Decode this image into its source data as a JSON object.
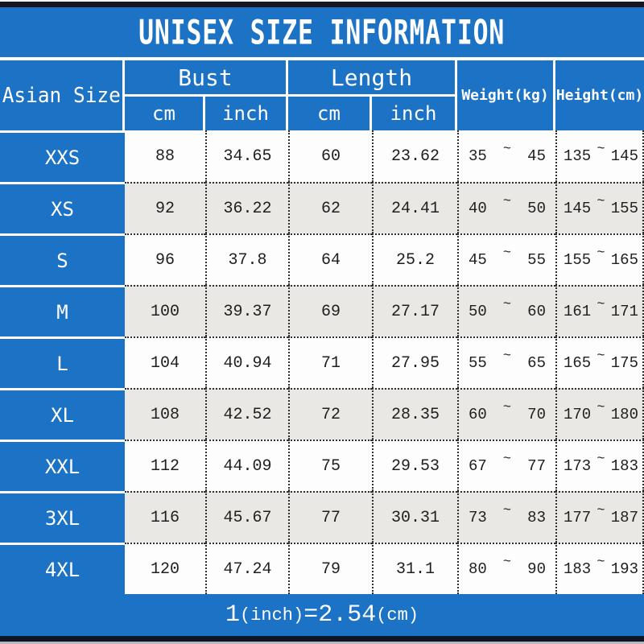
{
  "title": {
    "text": "UNISEX SIZE INFORMATION"
  },
  "header": {
    "size_column": "Asian Size",
    "groups": [
      {
        "label": "Bust",
        "subs": [
          "cm",
          "inch"
        ]
      },
      {
        "label": "Length",
        "subs": [
          "cm",
          "inch"
        ]
      }
    ],
    "weight": "Weight(kg)",
    "height": "Height(cm)"
  },
  "tilde": "~",
  "rows": [
    {
      "size": "XXS",
      "bust_cm": "88",
      "bust_inch": "34.65",
      "len_cm": "60",
      "len_inch": "23.62",
      "weight_min": "35",
      "weight_max": "45",
      "height_min": "135",
      "height_max": "145"
    },
    {
      "size": "XS",
      "bust_cm": "92",
      "bust_inch": "36.22",
      "len_cm": "62",
      "len_inch": "24.41",
      "weight_min": "40",
      "weight_max": "50",
      "height_min": "145",
      "height_max": "155"
    },
    {
      "size": "S",
      "bust_cm": "96",
      "bust_inch": "37.8",
      "len_cm": "64",
      "len_inch": "25.2",
      "weight_min": "45",
      "weight_max": "55",
      "height_min": "155",
      "height_max": "165"
    },
    {
      "size": "M",
      "bust_cm": "100",
      "bust_inch": "39.37",
      "len_cm": "69",
      "len_inch": "27.17",
      "weight_min": "50",
      "weight_max": "60",
      "height_min": "161",
      "height_max": "171"
    },
    {
      "size": "L",
      "bust_cm": "104",
      "bust_inch": "40.94",
      "len_cm": "71",
      "len_inch": "27.95",
      "weight_min": "55",
      "weight_max": "65",
      "height_min": "165",
      "height_max": "175"
    },
    {
      "size": "XL",
      "bust_cm": "108",
      "bust_inch": "42.52",
      "len_cm": "72",
      "len_inch": "28.35",
      "weight_min": "60",
      "weight_max": "70",
      "height_min": "170",
      "height_max": "180"
    },
    {
      "size": "XXL",
      "bust_cm": "112",
      "bust_inch": "44.09",
      "len_cm": "75",
      "len_inch": "29.53",
      "weight_min": "67",
      "weight_max": "77",
      "height_min": "173",
      "height_max": "183"
    },
    {
      "size": "3XL",
      "bust_cm": "116",
      "bust_inch": "45.67",
      "len_cm": "77",
      "len_inch": "30.31",
      "weight_min": "73",
      "weight_max": "83",
      "height_min": "177",
      "height_max": "187"
    },
    {
      "size": "4XL",
      "bust_cm": "120",
      "bust_inch": "47.24",
      "len_cm": "79",
      "len_inch": "31.1",
      "weight_min": "80",
      "weight_max": "90",
      "height_min": "183",
      "height_max": "193"
    }
  ],
  "footer": {
    "text": "1(inch)=2.54(cm)",
    "num1": "1",
    "unit1": "(inch)",
    "eq": "=",
    "num2": "2.54",
    "unit2": "(cm)"
  },
  "colors": {
    "blue": "#1c72c4",
    "row_white": "#fdfdfd",
    "row_alt": "#e9e8e5",
    "dotted_border": "#2e2e2e",
    "bar_top": "#17171d",
    "bar_bottom": "#0d1626"
  },
  "chart_data": {
    "type": "table",
    "title": "UNISEX SIZE INFORMATION",
    "columns": [
      "Asian Size",
      "Bust cm",
      "Bust inch",
      "Length cm",
      "Length inch",
      "Weight(kg)",
      "Height(cm)"
    ],
    "rows": [
      [
        "XXS",
        88,
        34.65,
        60,
        23.62,
        "35~45",
        "135~145"
      ],
      [
        "XS",
        92,
        36.22,
        62,
        24.41,
        "40~50",
        "145~155"
      ],
      [
        "S",
        96,
        37.8,
        64,
        25.2,
        "45~55",
        "155~165"
      ],
      [
        "M",
        100,
        39.37,
        69,
        27.17,
        "50~60",
        "161~171"
      ],
      [
        "L",
        104,
        40.94,
        71,
        27.95,
        "55~65",
        "165~175"
      ],
      [
        "XL",
        108,
        42.52,
        72,
        28.35,
        "60~70",
        "170~180"
      ],
      [
        "XXL",
        112,
        44.09,
        75,
        29.53,
        "67~77",
        "173~183"
      ],
      [
        "3XL",
        116,
        45.67,
        77,
        30.31,
        "73~83",
        "177~187"
      ],
      [
        "4XL",
        120,
        47.24,
        79,
        31.1,
        "80~90",
        "183~193"
      ]
    ],
    "note": "1(inch)=2.54(cm)"
  }
}
